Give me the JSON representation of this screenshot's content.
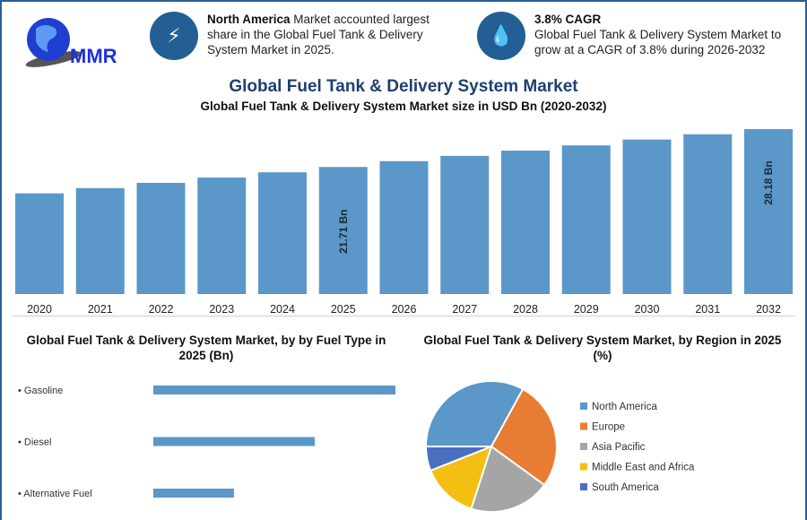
{
  "logo": {
    "text": "MMR"
  },
  "info_cards": [
    {
      "icon": "lightning-icon",
      "bold": "North America",
      "text": " Market accounted largest share in the Global Fuel Tank & Delivery System Market in 2025."
    },
    {
      "icon": "fuel-drop-icon",
      "bold": "3.8% CAGR",
      "text": "Global Fuel Tank & Delivery System Market to grow at a CAGR of 3.8% during 2026-2032"
    }
  ],
  "title": "Global Fuel Tank & Delivery System Market",
  "chart_data": [
    {
      "type": "bar",
      "title": "Global Fuel Tank & Delivery System Market size in USD Bn (2020-2032)",
      "categories": [
        "2020",
        "2021",
        "2022",
        "2023",
        "2024",
        "2025",
        "2026",
        "2027",
        "2028",
        "2029",
        "2030",
        "2031",
        "2032"
      ],
      "values": [
        17.2,
        18.1,
        19.0,
        19.9,
        20.8,
        21.71,
        22.7,
        23.6,
        24.5,
        25.4,
        26.4,
        27.3,
        28.18
      ],
      "data_labels": {
        "2025": "21.71 Bn",
        "2032": "28.18 Bn"
      },
      "color": "#5b97c8",
      "ylim": [
        0,
        28.18
      ],
      "grid": false
    },
    {
      "type": "bar",
      "orientation": "horizontal",
      "title": "Global Fuel Tank & Delivery System Market, by by Fuel Type in 2025 (Bn)",
      "categories": [
        "Gasoline",
        "Diesel",
        "Alternative Fuel"
      ],
      "relative_values": [
        1.0,
        0.667,
        0.333
      ],
      "color": "#5b97c8"
    },
    {
      "type": "pie",
      "title": "Global Fuel Tank & Delivery System Market, by Region in 2025 (%)",
      "labels": [
        "North America",
        "Europe",
        "Asia Pacific",
        "Middle East and Africa",
        "South America"
      ],
      "values": [
        33,
        27,
        20,
        14,
        6
      ],
      "colors": [
        "#5b97c8",
        "#e87c32",
        "#a5a5a5",
        "#f4bf12",
        "#4a6fc0"
      ],
      "legend": "right"
    }
  ]
}
